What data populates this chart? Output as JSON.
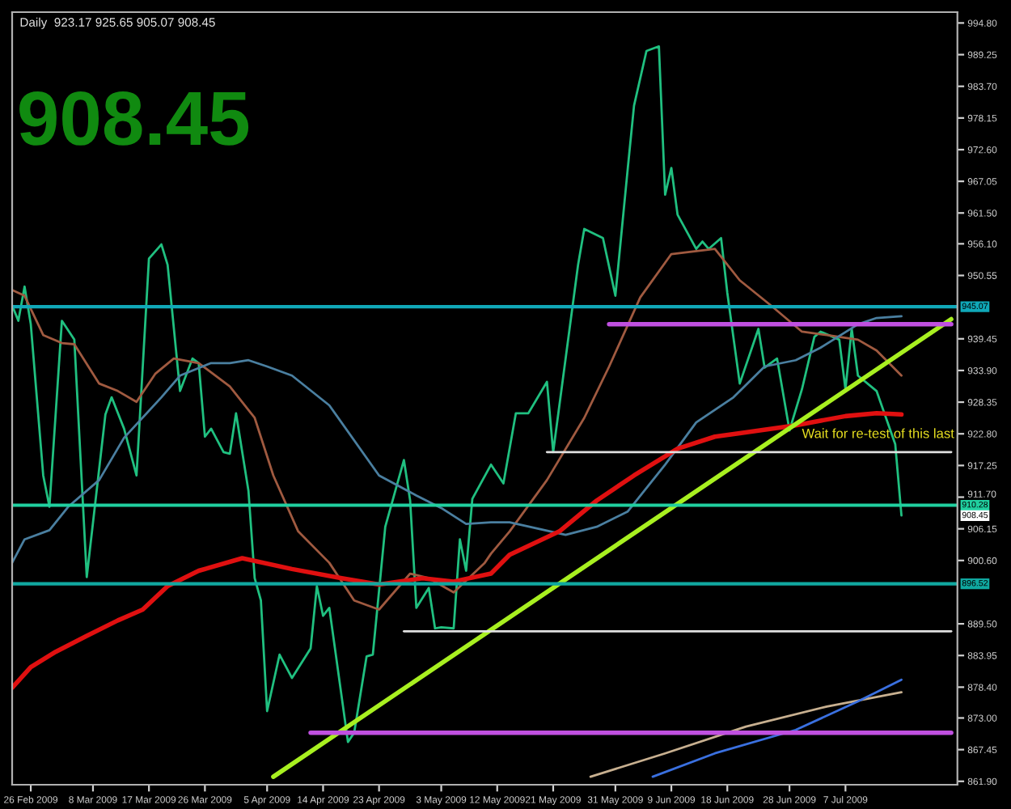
{
  "chart_data": {
    "type": "line",
    "title": "Daily  923.17 925.65 905.07 908.45",
    "annotations": [
      "908.45",
      {
        "text": "Wait for re-test of this last",
        "x": "2009-06-30",
        "y": 919.6
      },
      "908.45"
    ],
    "series": [
      {
        "color": "#20c080",
        "x": [
          "2009-02-23",
          "2009-02-24",
          "2009-02-25",
          "2009-02-26",
          "2009-02-28",
          "2009-03-01",
          "2009-03-03",
          "2009-03-05",
          "2009-03-07",
          "2009-03-10",
          "2009-03-11",
          "2009-03-13",
          "2009-03-15",
          "2009-03-17",
          "2009-03-19",
          "2009-03-20",
          "2009-03-22",
          "2009-03-24",
          "2009-03-25",
          "2009-03-26",
          "2009-03-27",
          "2009-03-29",
          "2009-03-30",
          "2009-03-31",
          "2009-04-02",
          "2009-04-03",
          "2009-04-04",
          "2009-04-05",
          "2009-04-07",
          "2009-04-09",
          "2009-04-12",
          "2009-04-13",
          "2009-04-14",
          "2009-04-15",
          "2009-04-18",
          "2009-04-19",
          "2009-04-21",
          "2009-04-22",
          "2009-04-24",
          "2009-04-27",
          "2009-04-28",
          "2009-04-29",
          "2009-05-01",
          "2009-05-02",
          "2009-05-03",
          "2009-05-05",
          "2009-05-06",
          "2009-05-07",
          "2009-05-08",
          "2009-05-11",
          "2009-05-13",
          "2009-05-15",
          "2009-05-17",
          "2009-05-20",
          "2009-05-21",
          "2009-05-25",
          "2009-05-26",
          "2009-05-29",
          "2009-05-31",
          "2009-06-02",
          "2009-06-03",
          "2009-06-05",
          "2009-06-07",
          "2009-06-08",
          "2009-06-09",
          "2009-06-10",
          "2009-06-13",
          "2009-06-14",
          "2009-06-15",
          "2009-06-17",
          "2009-06-18",
          "2009-06-20",
          "2009-06-23",
          "2009-06-24",
          "2009-06-26",
          "2009-06-28",
          "2009-06-30",
          "2009-07-02",
          "2009-07-03",
          "2009-07-06",
          "2009-07-07",
          "2009-07-08",
          "2009-07-09",
          "2009-07-12",
          "2009-07-15",
          "2009-07-16"
        ],
        "values": [
          945.3,
          942.6,
          948.6,
          942.0,
          915.5,
          910.0,
          942.6,
          939.3,
          897.7,
          926.2,
          929.2,
          923.7,
          915.5,
          953.5,
          956.0,
          952.4,
          930.3,
          936.0,
          935.2,
          922.3,
          923.7,
          919.6,
          919.3,
          926.4,
          912.8,
          897.5,
          893.6,
          874.2,
          884.1,
          880.0,
          885.2,
          896.1,
          890.9,
          892.3,
          868.8,
          870.4,
          883.8,
          884.1,
          906.5,
          918.2,
          911.1,
          892.3,
          895.8,
          888.7,
          888.9,
          888.7,
          904.3,
          898.8,
          911.4,
          917.4,
          914.1,
          926.4,
          926.4,
          931.9,
          919.6,
          952.4,
          958.7,
          957.1,
          947.0,
          969.4,
          980.3,
          989.9,
          990.7,
          964.7,
          969.4,
          961.2,
          955.2,
          956.5,
          955.2,
          957.1,
          947.5,
          931.6,
          941.2,
          934.4,
          936.0,
          923.4,
          930.6,
          939.8,
          940.7,
          939.3,
          930.6,
          941.2,
          933.0,
          930.3,
          921.0,
          908.5
        ]
      },
      {
        "color": "#a05a40",
        "x": [
          "2009-02-23",
          "2009-02-25",
          "2009-02-28",
          "2009-03-03",
          "2009-03-05",
          "2009-03-09",
          "2009-03-12",
          "2009-03-15",
          "2009-03-18",
          "2009-03-21",
          "2009-03-25",
          "2009-03-30",
          "2009-04-03",
          "2009-04-06",
          "2009-04-10",
          "2009-04-15",
          "2009-04-19",
          "2009-04-23",
          "2009-04-28",
          "2009-05-01",
          "2009-05-05",
          "2009-05-10",
          "2009-05-11",
          "2009-05-14",
          "2009-05-20",
          "2009-05-26",
          "2009-05-30",
          "2009-06-04",
          "2009-06-09",
          "2009-06-16",
          "2009-06-20",
          "2009-06-25",
          "2009-06-30",
          "2009-07-04",
          "2009-07-09",
          "2009-07-12",
          "2009-07-16"
        ],
        "values": [
          948.0,
          947.0,
          940.1,
          938.7,
          938.5,
          931.6,
          930.3,
          928.4,
          933.3,
          936.0,
          935.2,
          931.1,
          925.6,
          915.5,
          905.7,
          900.2,
          893.6,
          892.0,
          898.3,
          897.5,
          895.0,
          900.2,
          901.8,
          905.7,
          914.7,
          925.6,
          934.6,
          946.7,
          954.3,
          955.2,
          949.7,
          945.3,
          940.7,
          940.1,
          939.3,
          937.4,
          933.0
        ]
      },
      {
        "color": "#4a7fa0",
        "x": [
          "2009-02-23",
          "2009-02-25",
          "2009-03-01",
          "2009-03-04",
          "2009-03-09",
          "2009-03-13",
          "2009-03-19",
          "2009-03-22",
          "2009-03-27",
          "2009-03-30",
          "2009-04-02",
          "2009-04-05",
          "2009-04-09",
          "2009-04-15",
          "2009-04-23",
          "2009-04-29",
          "2009-05-03",
          "2009-05-07",
          "2009-05-11",
          "2009-05-14",
          "2009-05-23",
          "2009-05-28",
          "2009-06-02",
          "2009-06-08",
          "2009-06-13",
          "2009-06-19",
          "2009-06-24",
          "2009-06-29",
          "2009-07-03",
          "2009-07-09",
          "2009-07-12",
          "2009-07-16"
        ],
        "values": [
          900.2,
          904.3,
          905.9,
          910.0,
          914.7,
          922.1,
          929.2,
          933.0,
          935.2,
          935.2,
          935.7,
          934.6,
          933.0,
          927.8,
          915.5,
          912.0,
          909.8,
          907.0,
          907.3,
          907.3,
          905.1,
          906.5,
          909.2,
          917.4,
          924.8,
          929.2,
          934.6,
          935.7,
          937.9,
          942.0,
          943.1,
          943.4
        ]
      },
      {
        "color": "#e01010",
        "x": [
          "2009-02-23",
          "2009-02-26",
          "2009-03-02",
          "2009-03-07",
          "2009-03-12",
          "2009-03-16",
          "2009-03-20",
          "2009-03-25",
          "2009-04-01",
          "2009-04-09",
          "2009-04-17",
          "2009-04-23",
          "2009-04-30",
          "2009-05-05",
          "2009-05-11",
          "2009-05-14",
          "2009-05-22",
          "2009-05-28",
          "2009-06-03",
          "2009-06-10",
          "2009-06-16",
          "2009-06-20",
          "2009-06-29",
          "2009-07-07",
          "2009-07-12",
          "2009-07-16"
        ],
        "values": [
          878.3,
          881.9,
          884.6,
          887.4,
          890.1,
          892.0,
          896.1,
          898.8,
          901.0,
          899.1,
          897.5,
          896.4,
          897.5,
          896.9,
          898.3,
          901.6,
          905.7,
          911.1,
          915.5,
          920.2,
          922.3,
          922.9,
          924.3,
          925.9,
          926.4,
          926.2
        ]
      },
      {
        "color": "#c8b090",
        "x": [
          "2009-05-27",
          "2009-06-08",
          "2009-06-21",
          "2009-07-04",
          "2009-07-16"
        ],
        "values": [
          862.7,
          866.8,
          871.5,
          875.0,
          877.5
        ]
      },
      {
        "color": "#3a70e0",
        "x": [
          "2009-06-06",
          "2009-06-16",
          "2009-06-29",
          "2009-07-09",
          "2009-07-16"
        ],
        "values": [
          862.7,
          866.8,
          870.9,
          875.9,
          879.7
        ]
      },
      {
        "color": "#a8f020",
        "x": [
          "2009-04-06",
          "2009-07-24"
        ],
        "values": [
          862.7,
          942.9
        ]
      },
      {
        "color": "#e0e0e0",
        "x": [
          "2009-05-20",
          "2009-07-24"
        ],
        "values": [
          919.6,
          919.6
        ]
      },
      {
        "color": "#e0e0e0",
        "x": [
          "2009-04-27",
          "2009-07-24"
        ],
        "values": [
          888.2,
          888.2
        ]
      },
      {
        "color": "#c050e0",
        "x": [
          "2009-05-30",
          "2009-07-24"
        ],
        "values": [
          942.0,
          942.0
        ]
      },
      {
        "color": "#c050e0",
        "x": [
          "2009-04-12",
          "2009-07-24"
        ],
        "values": [
          870.4,
          870.4
        ]
      }
    ],
    "ref_lines": [
      {
        "axis": "y",
        "value": 945.07,
        "label": "945.07",
        "color": "#10a8b8"
      },
      {
        "axis": "y",
        "value": 910.28,
        "label": "910.28",
        "color": "#20d0a0"
      },
      {
        "axis": "y",
        "value": 896.52,
        "label": "896.52",
        "color": "#10a8a0"
      }
    ],
    "xlim": [
      "2009-02-23",
      "2009-07-25"
    ],
    "ylim": [
      861.3,
      996.7
    ],
    "xticks": [
      {
        "value": "2009-02-26",
        "label": "26 Feb 2009"
      },
      {
        "value": "2009-03-08",
        "label": "8 Mar 2009"
      },
      {
        "value": "2009-03-17",
        "label": "17 Mar 2009"
      },
      {
        "value": "2009-03-26",
        "label": "26 Mar 2009"
      },
      {
        "value": "2009-04-05",
        "label": "5 Apr 2009"
      },
      {
        "value": "2009-04-14",
        "label": "14 Apr 2009"
      },
      {
        "value": "2009-04-23",
        "label": "23 Apr 2009"
      },
      {
        "value": "2009-05-03",
        "label": "3 May 2009"
      },
      {
        "value": "2009-05-12",
        "label": "12 May 2009"
      },
      {
        "value": "2009-05-21",
        "label": "21 May 2009"
      },
      {
        "value": "2009-05-31",
        "label": "31 May 2009"
      },
      {
        "value": "2009-06-09",
        "label": "9 Jun 2009"
      },
      {
        "value": "2009-06-18",
        "label": "18 Jun 2009"
      },
      {
        "value": "2009-06-28",
        "label": "28 Jun 2009"
      },
      {
        "value": "2009-07-07",
        "label": "7 Jul 2009"
      }
    ],
    "yticks": [
      {
        "value": 994.8,
        "label": "994.80"
      },
      {
        "value": 989.25,
        "label": "989.25"
      },
      {
        "value": 983.7,
        "label": "983.70"
      },
      {
        "value": 978.15,
        "label": "978.15"
      },
      {
        "value": 972.6,
        "label": "972.60"
      },
      {
        "value": 967.05,
        "label": "967.05"
      },
      {
        "value": 961.5,
        "label": "961.50"
      },
      {
        "value": 956.1,
        "label": "956.10"
      },
      {
        "value": 950.55,
        "label": "950.55"
      },
      {
        "value": 939.45,
        "label": "939.45"
      },
      {
        "value": 933.9,
        "label": "933.90"
      },
      {
        "value": 928.35,
        "label": "928.35"
      },
      {
        "value": 922.8,
        "label": "922.80"
      },
      {
        "value": 917.25,
        "label": "917.25"
      },
      {
        "value": 911.7,
        "label": "911.70"
      },
      {
        "value": 906.15,
        "label": "906.15"
      },
      {
        "value": 900.6,
        "label": "900.60"
      },
      {
        "value": 889.5,
        "label": "889.50"
      },
      {
        "value": 883.95,
        "label": "883.95"
      },
      {
        "value": 878.4,
        "label": "878.40"
      },
      {
        "value": 873.0,
        "label": "873.00"
      },
      {
        "value": 867.45,
        "label": "867.45"
      },
      {
        "value": 861.9,
        "label": "861.90"
      }
    ],
    "grid": false,
    "legend": false
  }
}
